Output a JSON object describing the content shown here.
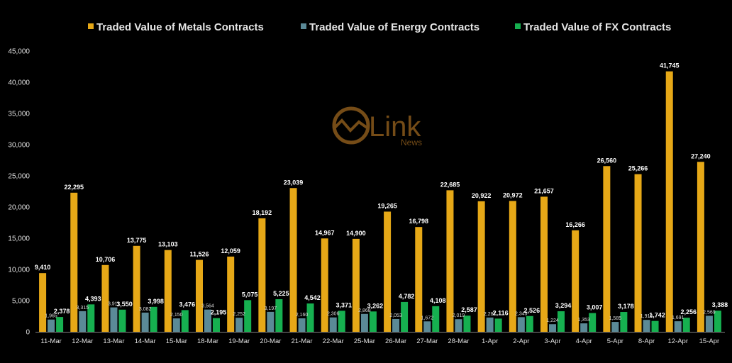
{
  "chart_data": {
    "type": "bar",
    "title": "",
    "xlabel": "",
    "ylabel": "",
    "ylim": [
      0,
      45000
    ],
    "yticks": [
      "0",
      "5,000",
      "10,000",
      "15,000",
      "20,000",
      "25,000",
      "30,000",
      "35,000",
      "40,000",
      "45,000"
    ],
    "grid": false,
    "legend_position": "top",
    "categories": [
      "11-Mar",
      "12-Mar",
      "13-Mar",
      "14-Mar",
      "15-Mar",
      "18-Mar",
      "19-Mar",
      "20-Mar",
      "21-Mar",
      "22-Mar",
      "25-Mar",
      "26-Mar",
      "27-Mar",
      "28-Mar",
      "1-Apr",
      "2-Apr",
      "3-Apr",
      "4-Apr",
      "5-Apr",
      "8-Apr",
      "12-Apr",
      "15-Apr"
    ],
    "series": [
      {
        "name": "Traded Value of Metals Contracts",
        "color": "#E6A817",
        "values": [
          9410,
          22295,
          10706,
          13775,
          13103,
          11526,
          12059,
          18192,
          23039,
          14967,
          14900,
          19265,
          16798,
          22685,
          20922,
          20972,
          21657,
          16266,
          26560,
          25266,
          41745,
          27240
        ],
        "labels": [
          "9,410",
          "22,295",
          "10,706",
          "13,775",
          "13,103",
          "11,526",
          "12,059",
          "18,192",
          "23,039",
          "14,967",
          "14,900",
          "19,265",
          "16,798",
          "22,685",
          "20,922",
          "20,972",
          "21,657",
          "16,266",
          "26,560",
          "25,266",
          "41,745",
          "27,240"
        ]
      },
      {
        "name": "Traded Value of Energy Contracts",
        "color": "#5B8A97",
        "values": [
          1965,
          3315,
          3911,
          3082,
          2150,
          3564,
          2252,
          3197,
          2160,
          2306,
          2868,
          2053,
          1672,
          2019,
          2287,
          2349,
          1224,
          1353,
          1585,
          1910,
          1691,
          2569
        ],
        "labels": [
          "1,965",
          "3,315",
          "3,911",
          "3,082",
          "2,150",
          "3,564",
          "2,252",
          "3,197",
          "2,160",
          "2,306",
          "2,868",
          "2,053",
          "1,672",
          "2,019",
          "2,287",
          "2,349",
          "1,224",
          "1,353",
          "1,585",
          "1,910",
          "1,691",
          "2,569"
        ]
      },
      {
        "name": "Traded Value of FX Contracts",
        "color": "#16B050",
        "values": [
          2378,
          4393,
          3550,
          3998,
          3476,
          2195,
          5075,
          5225,
          4542,
          3371,
          3262,
          4782,
          4108,
          2587,
          2116,
          2526,
          3294,
          3007,
          3178,
          1742,
          2256,
          3388
        ],
        "labels": [
          "2,378",
          "4,393",
          "3,550",
          "3,998",
          "3,476",
          "2,195",
          "5,075",
          "5,225",
          "4,542",
          "3,371",
          "3,262",
          "4,782",
          "4,108",
          "2,587",
          "2,116",
          "2,526",
          "3,294",
          "3,007",
          "3,178",
          "1,742",
          "2,256",
          "3,388"
        ]
      }
    ]
  },
  "logo": {
    "name": "Link",
    "sub": "News",
    "color": "#8a5a1c"
  }
}
